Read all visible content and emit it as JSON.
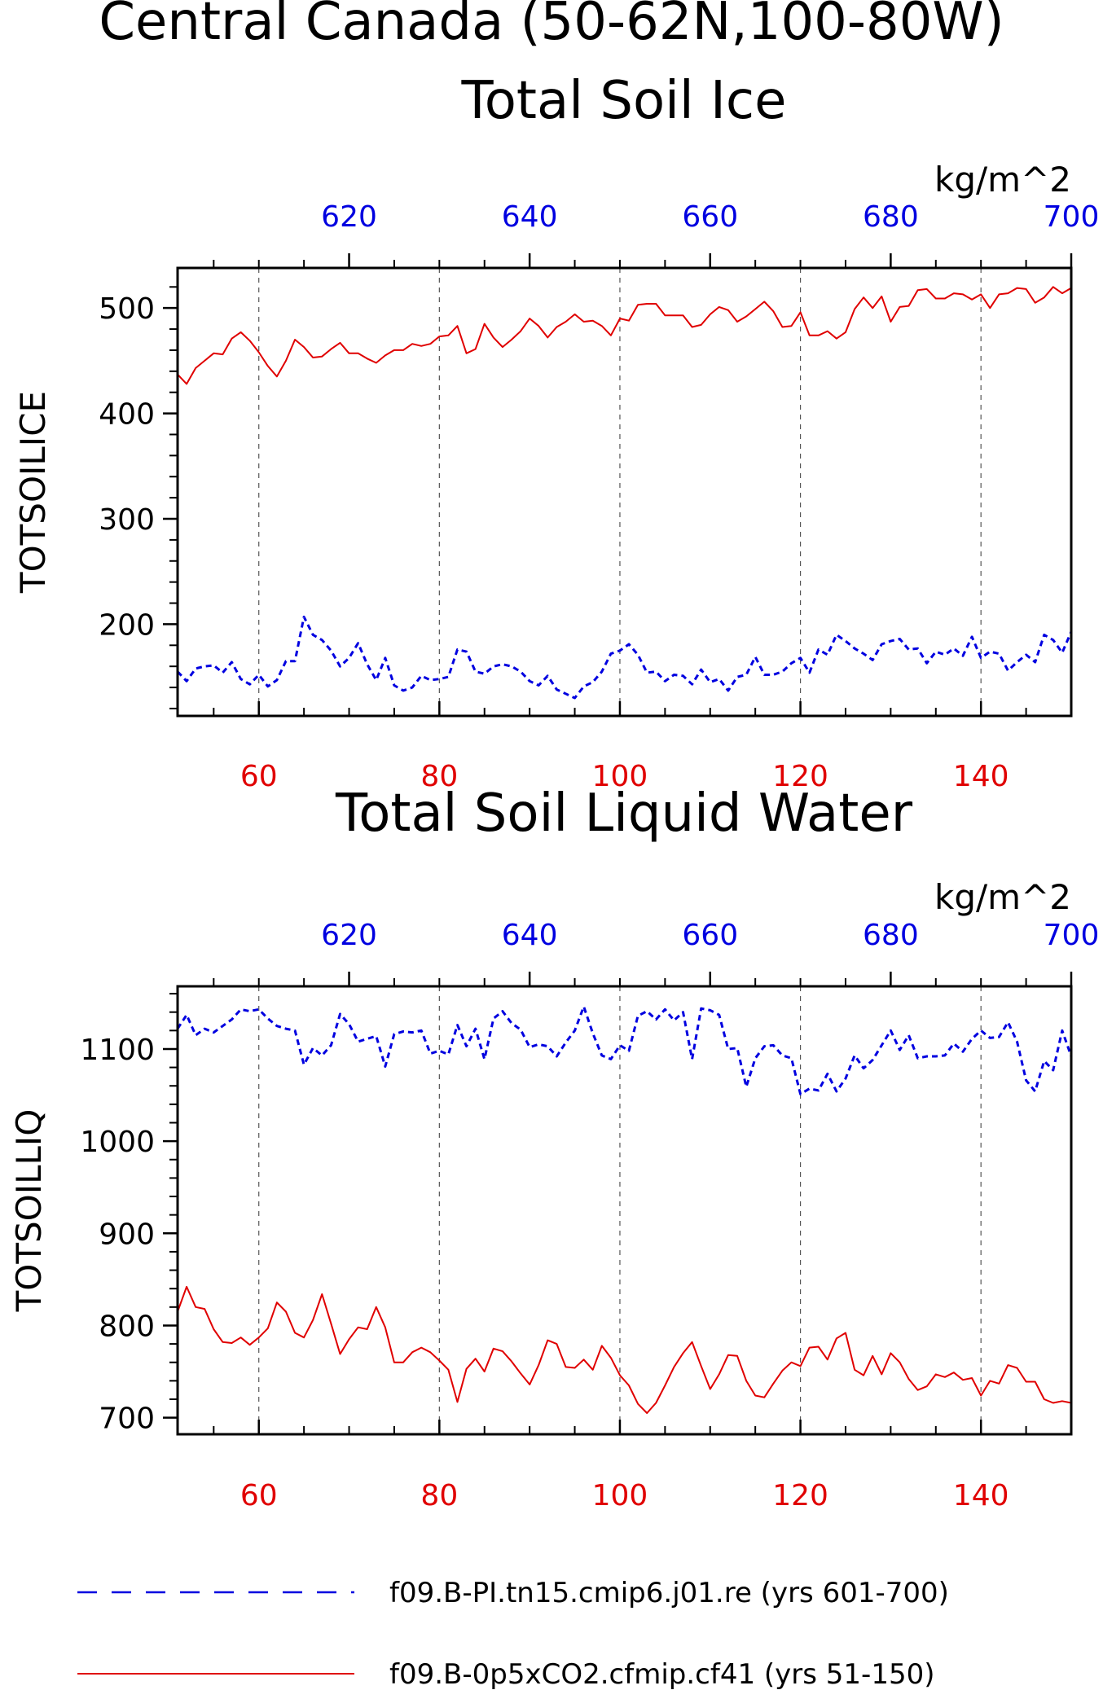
{
  "main_title": "Central Canada (50-62N,100-80W)",
  "legend": {
    "items": [
      {
        "label": "f09.B-PI.tn15.cmip6.j01.re (yrs 601-700)",
        "color": "#0000e0",
        "style": "dashed"
      },
      {
        "label": "f09.B-0p5xCO2.cfmip.cf41 (yrs 51-150)",
        "color": "#e00000",
        "style": "solid"
      }
    ]
  },
  "colors": {
    "red_series": "#e00000",
    "blue_series": "#0000e0",
    "grid": "#555555"
  },
  "chart_data": [
    {
      "type": "line",
      "title": "Total Soil Ice",
      "ylabel": "TOTSOILICE",
      "units": "kg/m^2",
      "xlim_bottom": [
        51,
        150
      ],
      "xlim_top": [
        601,
        700
      ],
      "ylim": [
        113,
        538
      ],
      "xticks_bottom": [
        60,
        80,
        100,
        120,
        140
      ],
      "xticks_top": [
        620,
        640,
        660,
        680,
        700
      ],
      "yticks": [
        200,
        300,
        400,
        500
      ],
      "grid_x": true,
      "series": [
        {
          "axis": "bottom",
          "color": "#e00000",
          "style": "solid",
          "x": [
            51,
            52,
            53,
            54,
            55,
            56,
            57,
            58,
            59,
            60,
            61,
            62,
            63,
            64,
            65,
            66,
            67,
            68,
            69,
            70,
            71,
            72,
            73,
            74,
            75,
            76,
            77,
            78,
            79,
            80,
            81,
            82,
            83,
            84,
            85,
            86,
            87,
            88,
            89,
            90,
            91,
            92,
            93,
            94,
            95,
            96,
            97,
            98,
            99,
            100,
            101,
            102,
            103,
            104,
            105,
            106,
            107,
            108,
            109,
            110,
            111,
            112,
            113,
            114,
            115,
            116,
            117,
            118,
            119,
            120,
            121,
            122,
            123,
            124,
            125,
            126,
            127,
            128,
            129,
            130,
            131,
            132,
            133,
            134,
            135,
            136,
            137,
            138,
            139,
            140,
            141,
            142,
            143,
            144,
            145,
            146,
            147,
            148,
            149,
            150
          ],
          "values": [
            437,
            428,
            443,
            450,
            457,
            456,
            471,
            477,
            469,
            458,
            445,
            435,
            450,
            470,
            463,
            453,
            454,
            461,
            467,
            457,
            457,
            452,
            448,
            455,
            460,
            460,
            466,
            464,
            466,
            473,
            474,
            483,
            457,
            461,
            485,
            472,
            463,
            470,
            478,
            490,
            483,
            472,
            482,
            487,
            494,
            487,
            488,
            483,
            474,
            490,
            488,
            503,
            504,
            504,
            493,
            493,
            493,
            482,
            484,
            494,
            501,
            498,
            487,
            492,
            499,
            506,
            497,
            482,
            483,
            496,
            474,
            474,
            478,
            471,
            477,
            499,
            510,
            500,
            511,
            487,
            501,
            502,
            517,
            518,
            509,
            509,
            514,
            513,
            508,
            513,
            500,
            513,
            514,
            519,
            518,
            505,
            510,
            520,
            514,
            519
          ]
        },
        {
          "axis": "top",
          "color": "#0000e0",
          "style": "dashed",
          "x": [
            601,
            602,
            603,
            604,
            605,
            606,
            607,
            608,
            609,
            610,
            611,
            612,
            613,
            614,
            615,
            616,
            617,
            618,
            619,
            620,
            621,
            622,
            623,
            624,
            625,
            626,
            627,
            628,
            629,
            630,
            631,
            632,
            633,
            634,
            635,
            636,
            637,
            638,
            639,
            640,
            641,
            642,
            643,
            644,
            645,
            646,
            647,
            648,
            649,
            650,
            651,
            652,
            653,
            654,
            655,
            656,
            657,
            658,
            659,
            660,
            661,
            662,
            663,
            664,
            665,
            666,
            667,
            668,
            669,
            670,
            671,
            672,
            673,
            674,
            675,
            676,
            677,
            678,
            679,
            680,
            681,
            682,
            683,
            684,
            685,
            686,
            687,
            688,
            689,
            690,
            691,
            692,
            693,
            694,
            695,
            696,
            697,
            698,
            699,
            700
          ],
          "values": [
            155,
            146,
            158,
            160,
            161,
            154,
            164,
            148,
            143,
            152,
            141,
            147,
            165,
            165,
            207,
            190,
            185,
            175,
            160,
            168,
            182,
            162,
            147,
            168,
            142,
            137,
            140,
            151,
            147,
            148,
            150,
            176,
            174,
            155,
            153,
            160,
            162,
            160,
            155,
            146,
            142,
            151,
            138,
            134,
            130,
            141,
            145,
            155,
            172,
            175,
            181,
            171,
            154,
            155,
            146,
            152,
            151,
            143,
            157,
            145,
            148,
            137,
            150,
            152,
            169,
            152,
            152,
            155,
            163,
            168,
            154,
            176,
            171,
            190,
            184,
            177,
            172,
            166,
            181,
            184,
            186,
            176,
            177,
            163,
            174,
            171,
            177,
            170,
            188,
            168,
            174,
            172,
            156,
            164,
            171,
            164,
            190,
            185,
            173,
            193
          ]
        }
      ]
    },
    {
      "type": "line",
      "title": "Total Soil Liquid Water",
      "ylabel": "TOTSOILLIQ",
      "units": "kg/m^2",
      "xlim_bottom": [
        51,
        150
      ],
      "xlim_top": [
        601,
        700
      ],
      "ylim": [
        682,
        1168
      ],
      "xticks_bottom": [
        60,
        80,
        100,
        120,
        140
      ],
      "xticks_top": [
        620,
        640,
        660,
        680,
        700
      ],
      "yticks": [
        700,
        800,
        900,
        1000,
        1100
      ],
      "grid_x": true,
      "series": [
        {
          "axis": "bottom",
          "color": "#e00000",
          "style": "solid",
          "x": [
            51,
            52,
            53,
            54,
            55,
            56,
            57,
            58,
            59,
            60,
            61,
            62,
            63,
            64,
            65,
            66,
            67,
            68,
            69,
            70,
            71,
            72,
            73,
            74,
            75,
            76,
            77,
            78,
            79,
            80,
            81,
            82,
            83,
            84,
            85,
            86,
            87,
            88,
            89,
            90,
            91,
            92,
            93,
            94,
            95,
            96,
            97,
            98,
            99,
            100,
            101,
            102,
            103,
            104,
            105,
            106,
            107,
            108,
            109,
            110,
            111,
            112,
            113,
            114,
            115,
            116,
            117,
            118,
            119,
            120,
            121,
            122,
            123,
            124,
            125,
            126,
            127,
            128,
            129,
            130,
            131,
            132,
            133,
            134,
            135,
            136,
            137,
            138,
            139,
            140,
            141,
            142,
            143,
            144,
            145,
            146,
            147,
            148,
            149,
            150
          ],
          "values": [
            815,
            842,
            820,
            818,
            796,
            782,
            781,
            787,
            779,
            787,
            797,
            825,
            815,
            792,
            787,
            806,
            834,
            802,
            769,
            785,
            798,
            796,
            820,
            798,
            760,
            760,
            771,
            776,
            771,
            762,
            752,
            717,
            753,
            764,
            750,
            775,
            772,
            761,
            748,
            736,
            757,
            784,
            780,
            755,
            754,
            763,
            752,
            778,
            765,
            746,
            735,
            715,
            705,
            716,
            735,
            755,
            770,
            782,
            756,
            731,
            747,
            768,
            767,
            740,
            724,
            722,
            737,
            751,
            760,
            756,
            776,
            777,
            763,
            786,
            792,
            752,
            746,
            767,
            747,
            770,
            760,
            742,
            730,
            734,
            747,
            744,
            749,
            741,
            743,
            724,
            740,
            737,
            757,
            754,
            739,
            739,
            720,
            716,
            718,
            716
          ]
        },
        {
          "axis": "top",
          "color": "#0000e0",
          "style": "dashed",
          "x": [
            601,
            602,
            603,
            604,
            605,
            606,
            607,
            608,
            609,
            610,
            611,
            612,
            613,
            614,
            615,
            616,
            617,
            618,
            619,
            620,
            621,
            622,
            623,
            624,
            625,
            626,
            627,
            628,
            629,
            630,
            631,
            632,
            633,
            634,
            635,
            636,
            637,
            638,
            639,
            640,
            641,
            642,
            643,
            644,
            645,
            646,
            647,
            648,
            649,
            650,
            651,
            652,
            653,
            654,
            655,
            656,
            657,
            658,
            659,
            660,
            661,
            662,
            663,
            664,
            665,
            666,
            667,
            668,
            669,
            670,
            671,
            672,
            673,
            674,
            675,
            676,
            677,
            678,
            679,
            680,
            681,
            682,
            683,
            684,
            685,
            686,
            687,
            688,
            689,
            690,
            691,
            692,
            693,
            694,
            695,
            696,
            697,
            698,
            699,
            700
          ],
          "values": [
            1122,
            1137,
            1115,
            1122,
            1118,
            1125,
            1132,
            1143,
            1141,
            1143,
            1133,
            1125,
            1122,
            1120,
            1083,
            1101,
            1093,
            1104,
            1138,
            1127,
            1108,
            1111,
            1114,
            1081,
            1116,
            1119,
            1118,
            1120,
            1095,
            1098,
            1094,
            1126,
            1103,
            1122,
            1089,
            1133,
            1141,
            1128,
            1121,
            1102,
            1105,
            1103,
            1092,
            1107,
            1120,
            1146,
            1117,
            1093,
            1089,
            1104,
            1098,
            1136,
            1141,
            1132,
            1143,
            1131,
            1140,
            1089,
            1144,
            1142,
            1137,
            1100,
            1101,
            1059,
            1090,
            1103,
            1104,
            1093,
            1090,
            1051,
            1057,
            1055,
            1073,
            1054,
            1068,
            1093,
            1079,
            1088,
            1104,
            1120,
            1099,
            1115,
            1090,
            1092,
            1092,
            1093,
            1106,
            1097,
            1111,
            1120,
            1112,
            1113,
            1129,
            1108,
            1066,
            1054,
            1087,
            1077,
            1120,
            1092
          ]
        }
      ]
    }
  ]
}
